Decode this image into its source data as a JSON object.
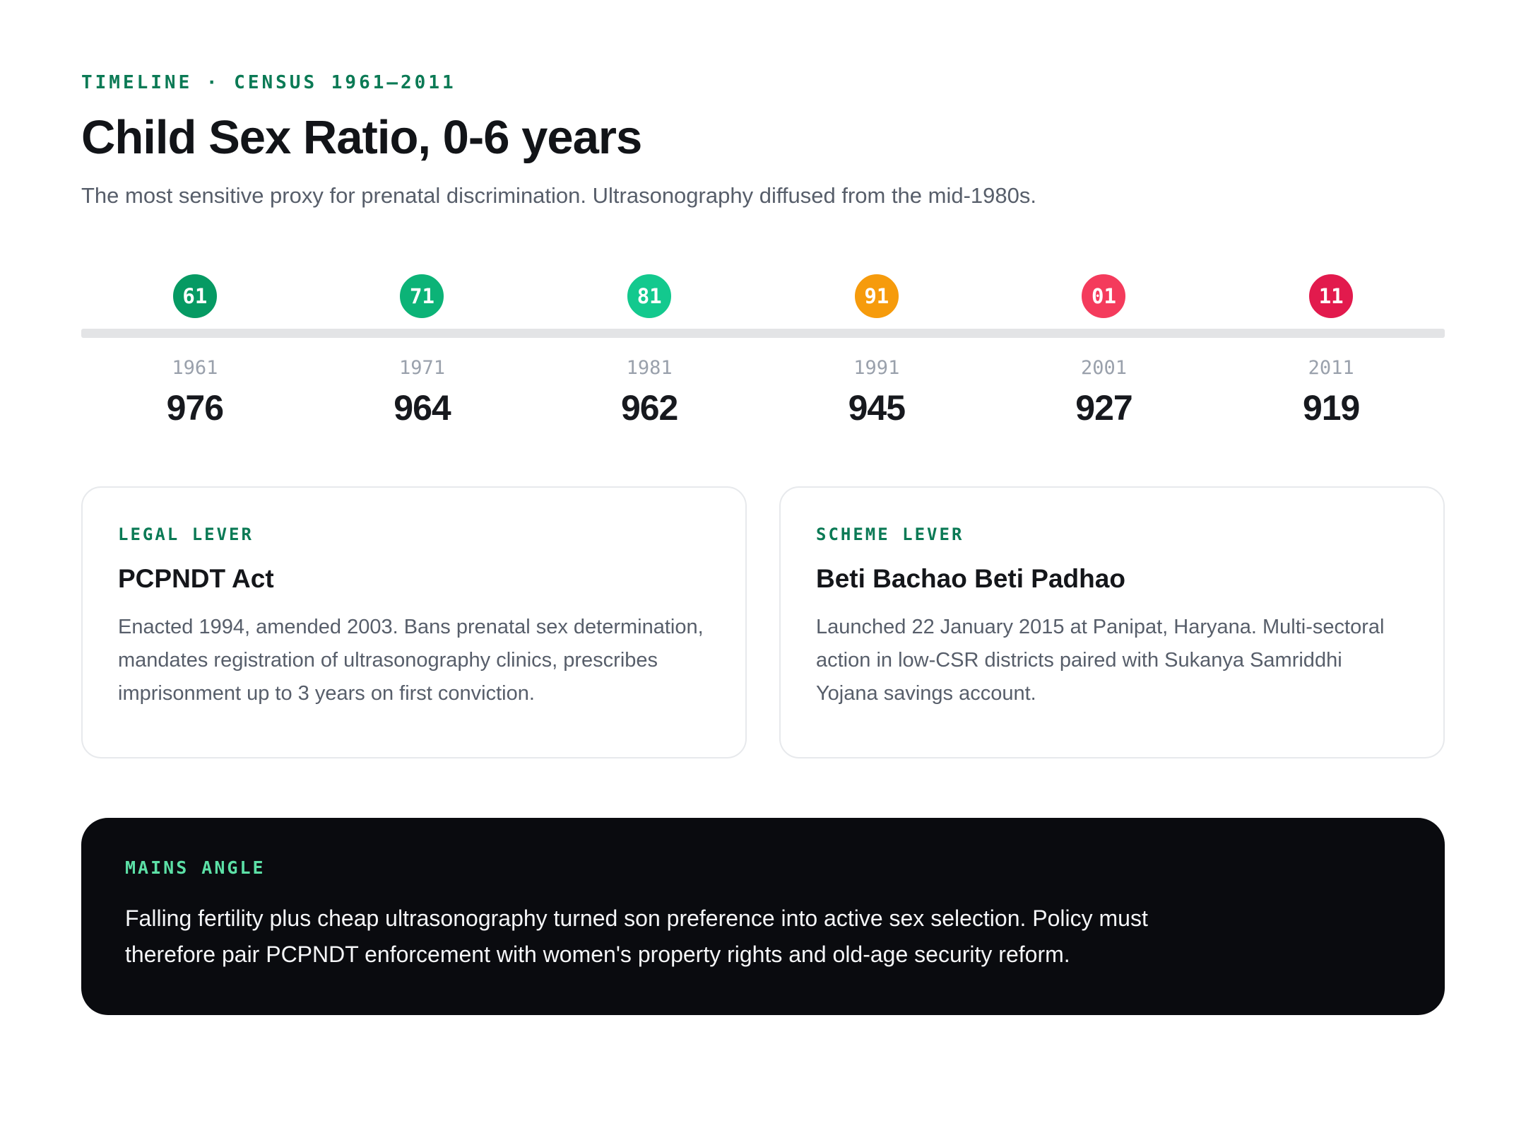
{
  "header": {
    "eyebrow": "TIMELINE · CENSUS 1961–2011",
    "title": "Child Sex Ratio, 0-6 years",
    "subtitle": "The most sensitive proxy for prenatal discrimination. Ultrasonography diffused from the mid-1980s."
  },
  "timeline": {
    "points": [
      {
        "badge": "61",
        "year": "1961",
        "value": "976",
        "color": "#069a63"
      },
      {
        "badge": "71",
        "year": "1971",
        "value": "964",
        "color": "#0cb377"
      },
      {
        "badge": "81",
        "year": "1981",
        "value": "962",
        "color": "#13c98e"
      },
      {
        "badge": "91",
        "year": "1991",
        "value": "945",
        "color": "#f69b0c"
      },
      {
        "badge": "01",
        "year": "2001",
        "value": "927",
        "color": "#f43b5c"
      },
      {
        "badge": "11",
        "year": "2011",
        "value": "919",
        "color": "#e21a4d"
      }
    ]
  },
  "chart_data": {
    "type": "line",
    "title": "Child Sex Ratio, 0-6 years",
    "x": [
      1961,
      1971,
      1981,
      1991,
      2001,
      2011
    ],
    "values": [
      976,
      964,
      962,
      945,
      927,
      919
    ]
  },
  "cards": [
    {
      "label": "LEGAL LEVER",
      "title": "PCPNDT Act",
      "body": "Enacted 1994, amended 2003. Bans prenatal sex determination, mandates registration of ultrasonography clinics, prescribes imprisonment up to 3 years on first conviction."
    },
    {
      "label": "SCHEME LEVER",
      "title": "Beti Bachao Beti Padhao",
      "body": "Launched 22 January 2015 at Panipat, Haryana. Multi-sectoral action in low-CSR districts paired with Sukanya Samriddhi Yojana savings account."
    }
  ],
  "mains": {
    "label": "MAINS ANGLE",
    "body": "Falling fertility plus cheap ultrasonography turned son preference into active sex selection. Policy must therefore pair PCPNDT enforcement with women's property rights and old-age security reform."
  },
  "colors": {
    "accent_green": "#0b7a55",
    "mint_label": "#5ce0a6",
    "track_gray": "#e3e4e6",
    "dark_card_bg": "#0a0b0f"
  }
}
